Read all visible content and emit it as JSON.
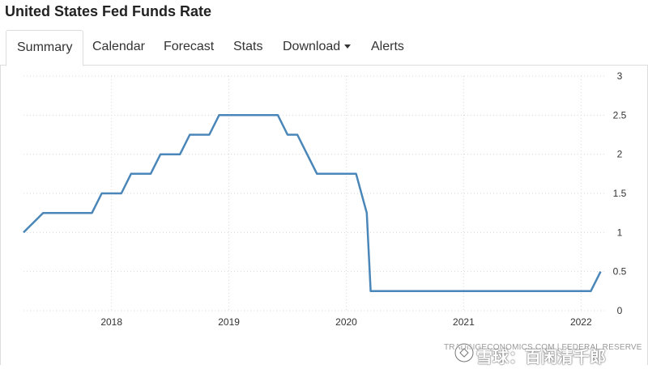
{
  "page": {
    "title": "United States Fed Funds Rate"
  },
  "tabs": [
    {
      "label": "Summary",
      "active": true
    },
    {
      "label": "Calendar",
      "active": false
    },
    {
      "label": "Forecast",
      "active": false
    },
    {
      "label": "Stats",
      "active": false
    },
    {
      "label": "Download",
      "active": false,
      "has_dropdown": true
    },
    {
      "label": "Alerts",
      "active": false
    }
  ],
  "colors": {
    "line": "#4a86b8",
    "grid": "#d9d9d9",
    "text": "#333333"
  },
  "watermark": {
    "source": "TRADINGECONOMICS.COM | FEDERAL RESERVE",
    "overlay": "雪球：百闲清千郎"
  },
  "chart_data": {
    "type": "line",
    "title": "",
    "xlabel": "",
    "ylabel": "",
    "ylim": [
      0,
      3
    ],
    "y_ticks": [
      "0",
      "0.5",
      "1",
      "1.5",
      "2",
      "2.5",
      "3"
    ],
    "x_ticks": [
      "2018",
      "2019",
      "2020",
      "2021",
      "2022"
    ],
    "y_axis_side": "right",
    "grid": "dotted",
    "series": [
      {
        "x": [
          "2017-04",
          "2017-06",
          "2017-07",
          "2017-08",
          "2017-09",
          "2017-10",
          "2017-11",
          "2017-12",
          "2018-01",
          "2018-02",
          "2018-03",
          "2018-04",
          "2018-05",
          "2018-06",
          "2018-07",
          "2018-08",
          "2018-09",
          "2018-10",
          "2018-11",
          "2018-12",
          "2019-01",
          "2019-02",
          "2019-03",
          "2019-04",
          "2019-05",
          "2019-06",
          "2019-07",
          "2019-08",
          "2019-09",
          "2019-10",
          "2019-11",
          "2019-12",
          "2020-01",
          "2020-02",
          "2020-03-04",
          "2020-03-16",
          "2020-04",
          "2020-06",
          "2020-12",
          "2021-06",
          "2021-12",
          "2022-02",
          "2022-03"
        ],
        "y": [
          1.0,
          1.25,
          1.25,
          1.25,
          1.25,
          1.25,
          1.25,
          1.5,
          1.5,
          1.5,
          1.75,
          1.75,
          1.75,
          2.0,
          2.0,
          2.0,
          2.25,
          2.25,
          2.25,
          2.5,
          2.5,
          2.5,
          2.5,
          2.5,
          2.5,
          2.5,
          2.25,
          2.25,
          2.0,
          1.75,
          1.75,
          1.75,
          1.75,
          1.75,
          1.25,
          0.25,
          0.25,
          0.25,
          0.25,
          0.25,
          0.25,
          0.25,
          0.5
        ]
      }
    ]
  }
}
